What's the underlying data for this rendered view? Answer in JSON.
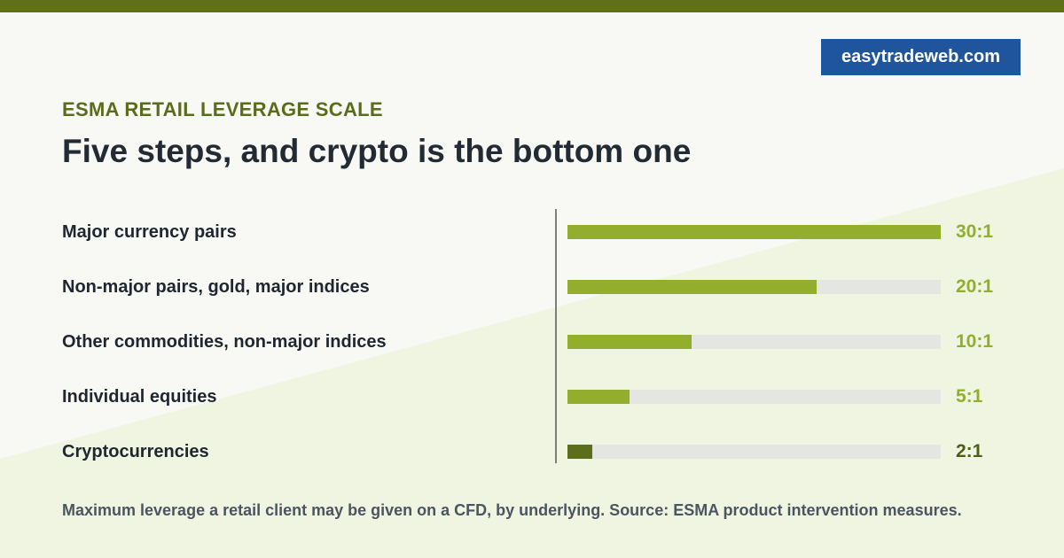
{
  "brand": "easytradeweb.com",
  "kicker": "ESMA RETAIL LEVERAGE SCALE",
  "title": "Five steps, and crypto is the bottom one",
  "footnote": "Maximum leverage a retail client may be given on a CFD, by underlying. Source: ESMA product intervention measures.",
  "colors": {
    "bar": "#93ae2c",
    "bar_lowest": "#5c6e1c",
    "value": "#93ae2c",
    "value_lowest": "#4e5e17",
    "track": "#e5e6e1",
    "top_bar": "#5f7019",
    "brand_bg": "#1f559c"
  },
  "chart_data": {
    "type": "bar",
    "orientation": "horizontal",
    "categories": [
      "Major currency pairs",
      "Non-major pairs, gold, major indices",
      "Other commodities, non-major indices",
      "Individual equities",
      "Cryptocurrencies"
    ],
    "values": [
      30,
      20,
      10,
      5,
      2
    ],
    "value_labels": [
      "30:1",
      "20:1",
      "10:1",
      "5:1",
      "2:1"
    ],
    "xlim": [
      0,
      30
    ]
  }
}
